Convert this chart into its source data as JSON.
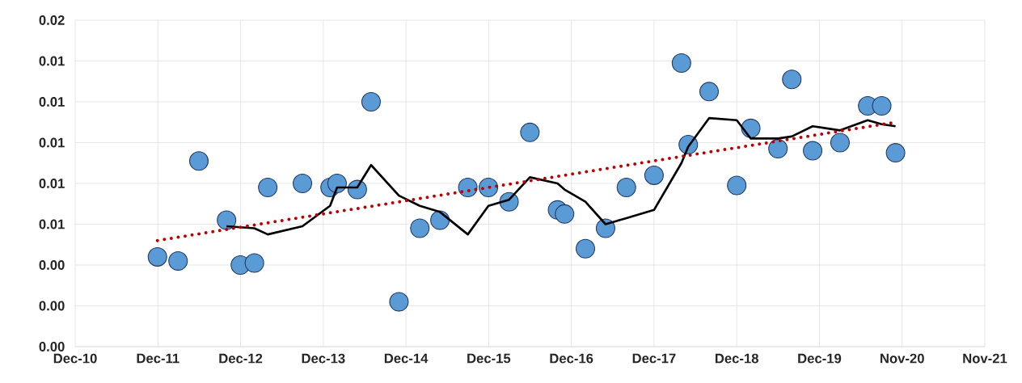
{
  "chart_data": {
    "type": "scatter",
    "grid": true,
    "xlim": [
      "2010-12-03",
      "2021-11-30"
    ],
    "xticks": [
      {
        "value": "2010-12-03",
        "label": "Dec-10"
      },
      {
        "value": "2011-12-03",
        "label": "Dec-11"
      },
      {
        "value": "2012-12-02",
        "label": "Dec-12"
      },
      {
        "value": "2013-12-02",
        "label": "Dec-13"
      },
      {
        "value": "2014-12-02",
        "label": "Dec-14"
      },
      {
        "value": "2015-12-02",
        "label": "Dec-15"
      },
      {
        "value": "2016-12-01",
        "label": "Dec-16"
      },
      {
        "value": "2017-12-01",
        "label": "Dec-17"
      },
      {
        "value": "2018-12-01",
        "label": "Dec-18"
      },
      {
        "value": "2019-12-01",
        "label": "Dec-19"
      },
      {
        "value": "2020-11-30",
        "label": "Nov-20"
      },
      {
        "value": "2021-11-30",
        "label": "Nov-21"
      }
    ],
    "ylim": [
      0,
      0.016
    ],
    "yticks": [
      {
        "value": 0,
        "label": "0.00"
      },
      {
        "value": 0.002,
        "label": "0.00"
      },
      {
        "value": 0.004,
        "label": "0.00"
      },
      {
        "value": 0.006,
        "label": "0.01"
      },
      {
        "value": 0.008,
        "label": "0.01"
      },
      {
        "value": 0.01,
        "label": "0.01"
      },
      {
        "value": 0.012,
        "label": "0.01"
      },
      {
        "value": 0.014,
        "label": "0.01"
      },
      {
        "value": 0.016,
        "label": "0.02"
      }
    ],
    "series": [
      {
        "marker": "circle",
        "color": "#5b9bd5",
        "x": [
          "2011-12",
          "2012-03",
          "2012-06",
          "2012-10",
          "2012-12",
          "2013-02",
          "2013-04",
          "2013-09",
          "2014-01",
          "2014-02",
          "2014-05",
          "2014-07",
          "2014-11",
          "2015-02",
          "2015-05",
          "2015-09",
          "2015-12",
          "2016-03",
          "2016-06",
          "2016-10",
          "2016-11",
          "2017-02",
          "2017-05",
          "2017-08",
          "2017-12",
          "2018-04",
          "2018-05",
          "2018-08",
          "2018-12",
          "2019-02",
          "2019-06",
          "2019-08",
          "2019-11",
          "2020-03",
          "2020-07",
          "2020-09",
          "2020-11"
        ],
        "values": [
          0.0044,
          0.0042,
          0.0091,
          0.0062,
          0.004,
          0.0041,
          0.0078,
          0.008,
          0.0078,
          0.008,
          0.0077,
          0.012,
          0.0022,
          0.0058,
          0.0062,
          0.0078,
          0.0078,
          0.0071,
          0.0105,
          0.0067,
          0.0065,
          0.0048,
          0.0058,
          0.0078,
          0.0084,
          0.0139,
          0.0099,
          0.0125,
          0.0079,
          0.0107,
          0.0097,
          0.0131,
          0.0096,
          0.01,
          0.0118,
          0.0118,
          0.0095
        ]
      },
      {
        "type": "line",
        "marker": "none",
        "line_style": "solid",
        "color": "#000000",
        "x": [
          "2012-10",
          "2013-02",
          "2013-04",
          "2013-09",
          "2014-01",
          "2014-02",
          "2014-05",
          "2014-07",
          "2014-11",
          "2015-02",
          "2015-05",
          "2015-09",
          "2015-12",
          "2016-03",
          "2016-06",
          "2016-10",
          "2016-11",
          "2017-02",
          "2017-05",
          "2017-08",
          "2017-12",
          "2018-04",
          "2018-05",
          "2018-08",
          "2018-12",
          "2019-02",
          "2019-06",
          "2019-08",
          "2019-11",
          "2020-03",
          "2020-07",
          "2020-09",
          "2020-11"
        ],
        "values": [
          0.0059,
          0.0058,
          0.0055,
          0.0059,
          0.0069,
          0.0078,
          0.0078,
          0.0089,
          0.0074,
          0.0069,
          0.0066,
          0.0055,
          0.0069,
          0.0072,
          0.0083,
          0.008,
          0.0077,
          0.0071,
          0.006,
          0.0063,
          0.0067,
          0.009,
          0.0098,
          0.0112,
          0.0111,
          0.0102,
          0.0102,
          0.0103,
          0.0108,
          0.0106,
          0.0111,
          0.0109,
          0.0108
        ]
      },
      {
        "type": "line",
        "marker": "none",
        "line_style": "dotted",
        "color": "#c00000",
        "x": [
          "2011-12",
          "2020-11"
        ],
        "values": [
          0.0052,
          0.011
        ]
      }
    ]
  }
}
